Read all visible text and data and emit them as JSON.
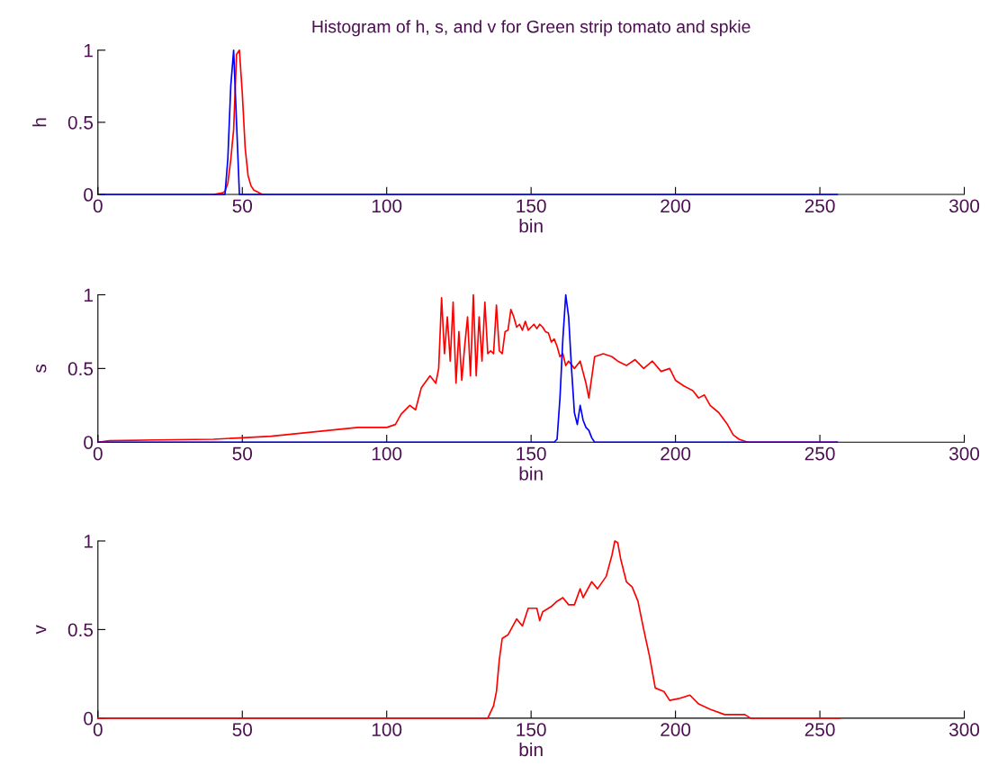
{
  "chart_data": [
    {
      "type": "line",
      "title": "Histogram of h, s, and v for Green strip tomato and spkie",
      "xlabel": "bin",
      "ylabel": "h",
      "xlim": [
        0,
        300
      ],
      "xticks": [
        0,
        50,
        100,
        150,
        200,
        250,
        300
      ],
      "ylim": [
        0,
        1
      ],
      "yticks": [
        0,
        0.5,
        1
      ],
      "grid": false,
      "legend": false,
      "series": [
        {
          "color": "#ff0000",
          "x": [
            40,
            43,
            44,
            45,
            46,
            47,
            48,
            49,
            50,
            51,
            52,
            53,
            54,
            55,
            56,
            57
          ],
          "values": [
            0,
            0.01,
            0.02,
            0.08,
            0.24,
            0.45,
            0.97,
            1.0,
            0.7,
            0.32,
            0.13,
            0.06,
            0.03,
            0.02,
            0.01,
            0
          ]
        },
        {
          "color": "#0000ff",
          "x": [
            1,
            44,
            45,
            46,
            47,
            48,
            49,
            256
          ],
          "values": [
            0,
            0,
            0.25,
            0.75,
            1.0,
            0.5,
            0,
            0
          ]
        }
      ]
    },
    {
      "type": "line",
      "xlabel": "bin",
      "ylabel": "s",
      "xlim": [
        0,
        300
      ],
      "xticks": [
        0,
        50,
        100,
        150,
        200,
        250,
        300
      ],
      "ylim": [
        0,
        1
      ],
      "yticks": [
        0,
        0.5,
        1
      ],
      "grid": false,
      "legend": false,
      "series": [
        {
          "color": "#ff0000",
          "x": [
            0,
            4,
            20,
            40,
            50,
            60,
            70,
            80,
            90,
            100,
            103,
            105,
            108,
            110,
            112,
            115,
            117,
            118,
            119,
            120,
            121,
            122,
            123,
            124,
            125,
            126,
            127,
            128,
            129,
            130,
            131,
            132,
            133,
            134,
            135,
            136,
            137,
            138,
            139,
            140,
            141,
            142,
            143,
            144,
            145,
            146,
            147,
            148,
            149,
            150,
            151,
            152,
            153,
            154,
            155,
            156,
            157,
            158,
            159,
            160,
            161,
            162,
            163,
            165,
            167,
            169,
            170,
            172,
            175,
            178,
            180,
            183,
            186,
            189,
            192,
            195,
            198,
            200,
            203,
            206,
            208,
            210,
            212,
            215,
            218,
            220,
            222,
            225,
            235,
            256
          ],
          "values": [
            0,
            0.01,
            0.015,
            0.02,
            0.03,
            0.04,
            0.06,
            0.08,
            0.1,
            0.1,
            0.12,
            0.19,
            0.25,
            0.22,
            0.37,
            0.45,
            0.4,
            0.5,
            0.98,
            0.6,
            0.85,
            0.55,
            0.95,
            0.4,
            0.75,
            0.42,
            0.65,
            0.85,
            0.45,
            1.0,
            0.45,
            0.85,
            0.55,
            0.95,
            0.6,
            0.62,
            0.6,
            0.93,
            0.62,
            0.6,
            0.75,
            0.76,
            0.9,
            0.85,
            0.78,
            0.8,
            0.76,
            0.82,
            0.76,
            0.78,
            0.8,
            0.77,
            0.8,
            0.78,
            0.75,
            0.74,
            0.68,
            0.7,
            0.65,
            0.58,
            0.6,
            0.52,
            0.55,
            0.5,
            0.55,
            0.4,
            0.3,
            0.58,
            0.6,
            0.58,
            0.55,
            0.52,
            0.56,
            0.5,
            0.55,
            0.48,
            0.5,
            0.42,
            0.38,
            0.35,
            0.3,
            0.32,
            0.25,
            0.2,
            0.12,
            0.05,
            0.02,
            0,
            0,
            0
          ]
        },
        {
          "color": "#0000ff",
          "x": [
            0,
            158,
            159,
            160,
            161,
            162,
            163,
            164,
            165,
            166,
            167,
            168,
            169,
            170,
            171,
            172,
            256
          ],
          "values": [
            0,
            0,
            0.02,
            0.3,
            0.7,
            1.0,
            0.85,
            0.5,
            0.2,
            0.12,
            0.25,
            0.15,
            0.1,
            0.08,
            0.03,
            0,
            0
          ]
        }
      ]
    },
    {
      "type": "line",
      "xlabel": "bin",
      "ylabel": "v",
      "xlim": [
        0,
        300
      ],
      "xticks": [
        0,
        50,
        100,
        150,
        200,
        250,
        300
      ],
      "ylim": [
        0,
        1
      ],
      "yticks": [
        0,
        0.5,
        1
      ],
      "grid": false,
      "legend": false,
      "series": [
        {
          "color": "#ff0000",
          "x": [
            0,
            135,
            137,
            138,
            139,
            140,
            142,
            145,
            147,
            149,
            152,
            153,
            154,
            157,
            159,
            161,
            163,
            165,
            167,
            168,
            171,
            173,
            176,
            178,
            179,
            180,
            181,
            183,
            185,
            187,
            189,
            191,
            193,
            196,
            198,
            201,
            205,
            208,
            212,
            217,
            224,
            226,
            257
          ],
          "values": [
            0,
            0,
            0.07,
            0.15,
            0.33,
            0.45,
            0.47,
            0.56,
            0.52,
            0.62,
            0.62,
            0.55,
            0.6,
            0.63,
            0.66,
            0.68,
            0.64,
            0.64,
            0.73,
            0.68,
            0.77,
            0.73,
            0.8,
            0.92,
            1.0,
            0.99,
            0.9,
            0.77,
            0.74,
            0.66,
            0.5,
            0.35,
            0.17,
            0.15,
            0.1,
            0.11,
            0.13,
            0.08,
            0.05,
            0.02,
            0.02,
            0,
            0
          ]
        }
      ]
    }
  ]
}
